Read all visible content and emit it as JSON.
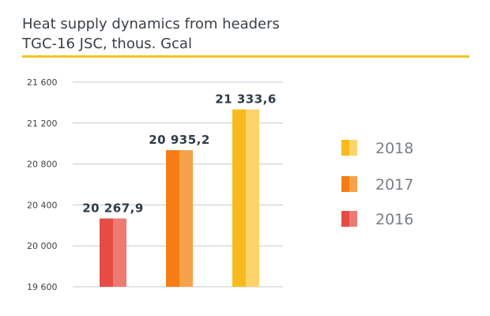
{
  "header": {
    "title_line1": "Heat supply dynamics from headers",
    "title_line2": "TGC-16 JSC, thous. Gcal"
  },
  "colors": {
    "accent_rule": "#f4c325",
    "grid": "#c9c9c9"
  },
  "chart_data": {
    "type": "bar",
    "title": "Heat supply dynamics from headers TGC-16 JSC, thous. Gcal",
    "categories": [
      "2016",
      "2017",
      "2018"
    ],
    "values": [
      20267.9,
      20935.2,
      21333.6
    ],
    "value_labels": [
      "20 267,9",
      "20 935,2",
      "21 333,6"
    ],
    "ylim": [
      19600,
      21600
    ],
    "yticks": [
      19600,
      20000,
      20400,
      20800,
      21200,
      21600
    ],
    "ytick_labels": [
      "19 600",
      "20 000",
      "20 400",
      "20 800",
      "21 200",
      "21 600"
    ],
    "grid": true,
    "legend_position": "right",
    "series_colors": [
      {
        "dark": "#e64c45",
        "light": "#ef7a72"
      },
      {
        "dark": "#f57d13",
        "light": "#f7a14a"
      },
      {
        "dark": "#f8bb1b",
        "light": "#fbd56b"
      }
    ],
    "legend": [
      {
        "label": "2018",
        "color_index": 2
      },
      {
        "label": "2017",
        "color_index": 1
      },
      {
        "label": "2016",
        "color_index": 0
      }
    ]
  }
}
